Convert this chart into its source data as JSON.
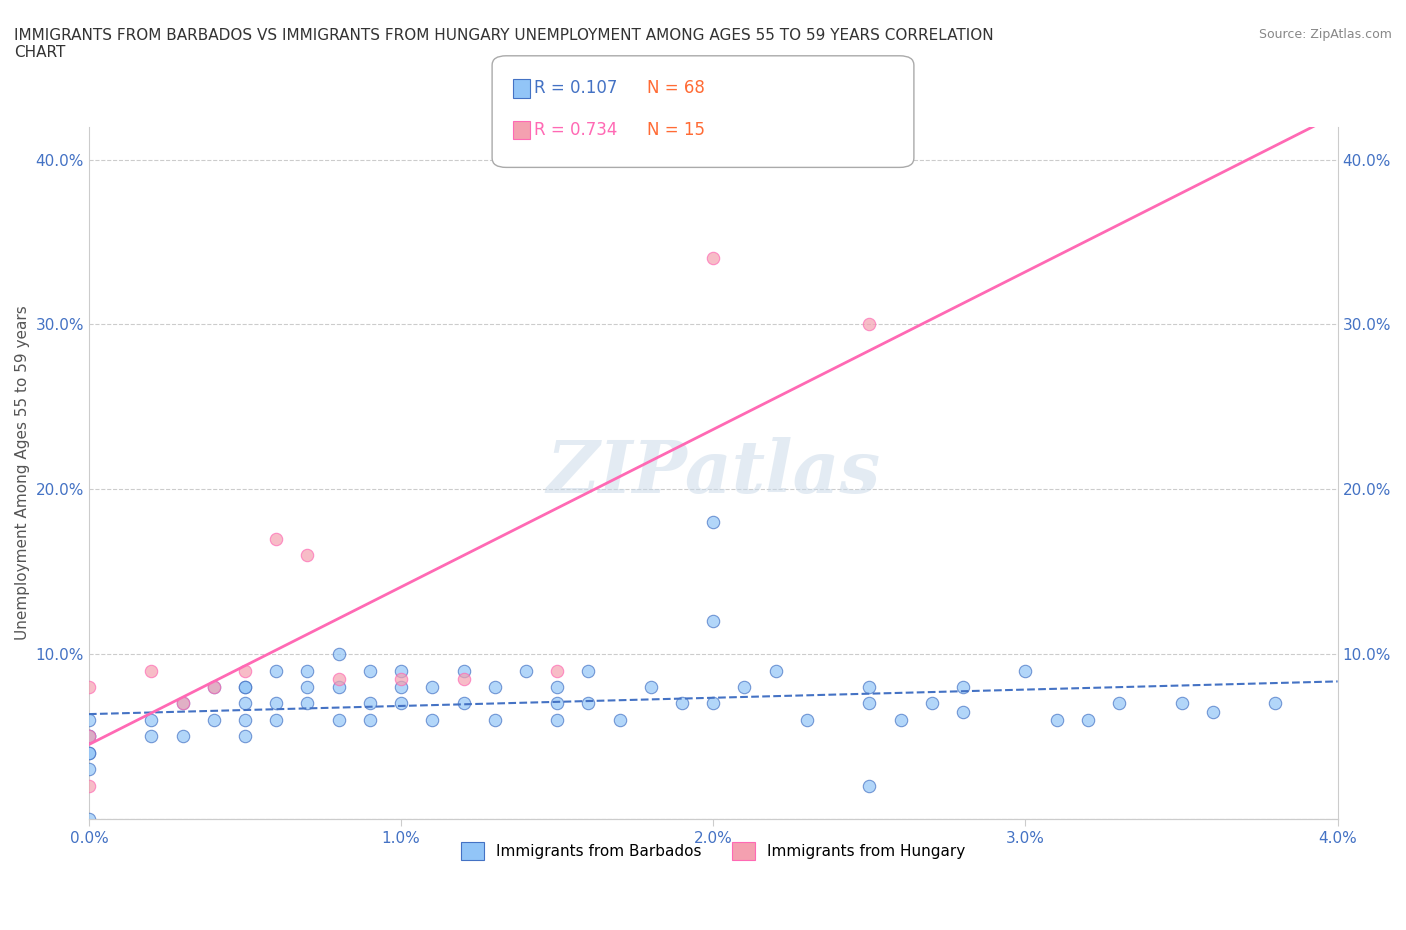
{
  "title": "IMMIGRANTS FROM BARBADOS VS IMMIGRANTS FROM HUNGARY UNEMPLOYMENT AMONG AGES 55 TO 59 YEARS CORRELATION\nCHART",
  "source": "Source: ZipAtlas.com",
  "xlabel_bottom": "Immigrants from Barbados",
  "xlabel_bottom2": "Immigrants from Hungary",
  "ylabel": "Unemployment Among Ages 55 to 59 years",
  "barbados_x": [
    0.0,
    0.0,
    0.0,
    0.0,
    0.0,
    0.0,
    0.002,
    0.002,
    0.003,
    0.003,
    0.004,
    0.004,
    0.005,
    0.005,
    0.005,
    0.005,
    0.006,
    0.006,
    0.006,
    0.007,
    0.007,
    0.007,
    0.008,
    0.008,
    0.008,
    0.009,
    0.009,
    0.009,
    0.01,
    0.01,
    0.01,
    0.011,
    0.011,
    0.012,
    0.012,
    0.013,
    0.013,
    0.014,
    0.015,
    0.015,
    0.015,
    0.016,
    0.016,
    0.017,
    0.018,
    0.019,
    0.02,
    0.02,
    0.021,
    0.022,
    0.023,
    0.025,
    0.025,
    0.026,
    0.027,
    0.028,
    0.03,
    0.031,
    0.033,
    0.025,
    0.028,
    0.032,
    0.035,
    0.0,
    0.005,
    0.038,
    0.02,
    0.036
  ],
  "barbados_y": [
    0.05,
    0.04,
    0.06,
    0.03,
    0.05,
    0.04,
    0.06,
    0.05,
    0.07,
    0.05,
    0.06,
    0.08,
    0.07,
    0.06,
    0.08,
    0.05,
    0.07,
    0.09,
    0.06,
    0.08,
    0.07,
    0.09,
    0.08,
    0.06,
    0.1,
    0.07,
    0.09,
    0.06,
    0.08,
    0.07,
    0.09,
    0.06,
    0.08,
    0.07,
    0.09,
    0.08,
    0.06,
    0.09,
    0.07,
    0.06,
    0.08,
    0.07,
    0.09,
    0.06,
    0.08,
    0.07,
    0.12,
    0.07,
    0.08,
    0.09,
    0.06,
    0.07,
    0.08,
    0.06,
    0.07,
    0.08,
    0.09,
    0.06,
    0.07,
    0.02,
    0.065,
    0.06,
    0.07,
    0.0,
    0.08,
    0.07,
    0.18,
    0.065
  ],
  "hungary_x": [
    0.0,
    0.0,
    0.0,
    0.002,
    0.003,
    0.004,
    0.005,
    0.006,
    0.007,
    0.008,
    0.01,
    0.012,
    0.015,
    0.02,
    0.025
  ],
  "hungary_y": [
    0.02,
    0.05,
    0.08,
    0.09,
    0.07,
    0.08,
    0.09,
    0.17,
    0.16,
    0.085,
    0.085,
    0.085,
    0.09,
    0.34,
    0.3
  ],
  "barbados_R": 0.107,
  "barbados_N": 68,
  "hungary_R": 0.734,
  "hungary_N": 15,
  "barbados_color": "#92C5F7",
  "hungary_color": "#F4A0B0",
  "barbados_line_color": "#4472C4",
  "hungary_line_color": "#FF69B4",
  "xmin": 0.0,
  "xmax": 0.04,
  "ymin": 0.0,
  "ymax": 0.42,
  "x_ticks": [
    0.0,
    0.01,
    0.02,
    0.03,
    0.04
  ],
  "x_tick_labels": [
    "0.0%",
    "1.0%",
    "2.0%",
    "3.0%",
    "4.0%"
  ],
  "y_ticks": [
    0.0,
    0.1,
    0.2,
    0.3,
    0.4
  ],
  "y_tick_labels_left": [
    "",
    "10.0%",
    "20.0%",
    "30.0%",
    "40.0%"
  ],
  "y_tick_labels_right": [
    "",
    "10.0%",
    "20.0%",
    "30.0%",
    "40.0%"
  ],
  "background_color": "#FFFFFF",
  "watermark": "ZIPatlas",
  "watermark_color": "#C8D8E8"
}
